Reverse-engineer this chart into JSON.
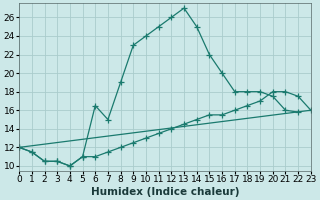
{
  "xlabel": "Humidex (Indice chaleur)",
  "line1_x": [
    0,
    1,
    2,
    3,
    4,
    5,
    6,
    7,
    8,
    9,
    10,
    11,
    12,
    13,
    14,
    15,
    16,
    17,
    18,
    19,
    20,
    21,
    22,
    23
  ],
  "line1_y": [
    12,
    11.5,
    10.5,
    10.5,
    10,
    11,
    16.5,
    15,
    19,
    23,
    24,
    25,
    26,
    27,
    25,
    22,
    20,
    18,
    18,
    18,
    17.5,
    16,
    15.8,
    null
  ],
  "line2_x": [
    0,
    1,
    2,
    3,
    4,
    5,
    6,
    7,
    8,
    9,
    10,
    11,
    12,
    13,
    14,
    15,
    16,
    17,
    18,
    19,
    20,
    21,
    22,
    23
  ],
  "line2_y": [
    12,
    11.5,
    10.5,
    10.5,
    10,
    11,
    11,
    11.5,
    12,
    12.5,
    13,
    13.5,
    14,
    14.5,
    15,
    15.5,
    15.5,
    16,
    16.5,
    17,
    18,
    18,
    17.5,
    16
  ],
  "line3_x": [
    0,
    23
  ],
  "line3_y": [
    12,
    16
  ],
  "line_color": "#1a7a6e",
  "bg_color": "#cce8e8",
  "grid_color": "#aacccc",
  "xlim": [
    0,
    23
  ],
  "ylim": [
    9.5,
    27.5
  ],
  "yticks": [
    10,
    12,
    14,
    16,
    18,
    20,
    22,
    24,
    26
  ],
  "xtick_labels": [
    "0",
    "1",
    "2",
    "3",
    "4",
    "5",
    "6",
    "7",
    "8",
    "9",
    "10",
    "11",
    "12",
    "13",
    "14",
    "15",
    "16",
    "17",
    "18",
    "19",
    "20",
    "21",
    "22",
    "23"
  ],
  "tick_fontsize": 6.5,
  "xlabel_fontsize": 7.5
}
